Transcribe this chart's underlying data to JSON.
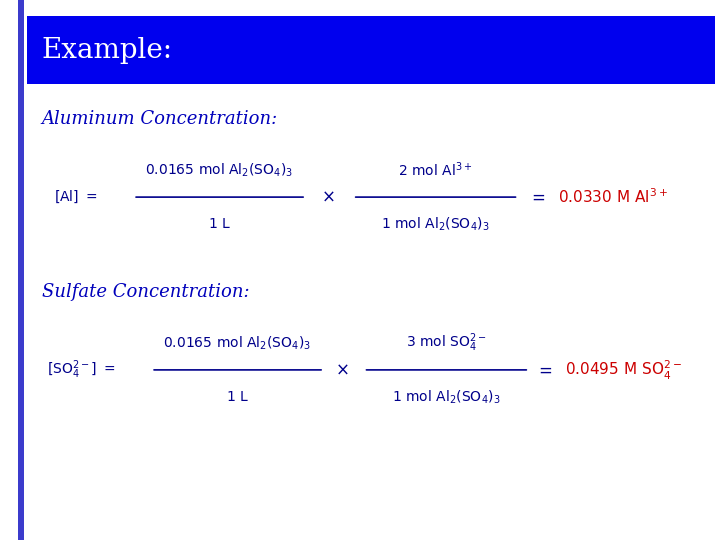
{
  "title": "Example:",
  "title_bg_color": "#0000EE",
  "title_text_color": "#FFFFFF",
  "bg_color": "#FFFFFF",
  "left_bar_color": "#3b3bcc",
  "heading1": "Aluminum Concentration:",
  "heading2": "Sulfate Concentration:",
  "heading_color": "#0000BB",
  "result_color": "#CC0000",
  "formula_color": "#00008B",
  "font_size_title": 20,
  "font_size_heading": 13,
  "font_size_formula": 10,
  "font_size_result": 11
}
